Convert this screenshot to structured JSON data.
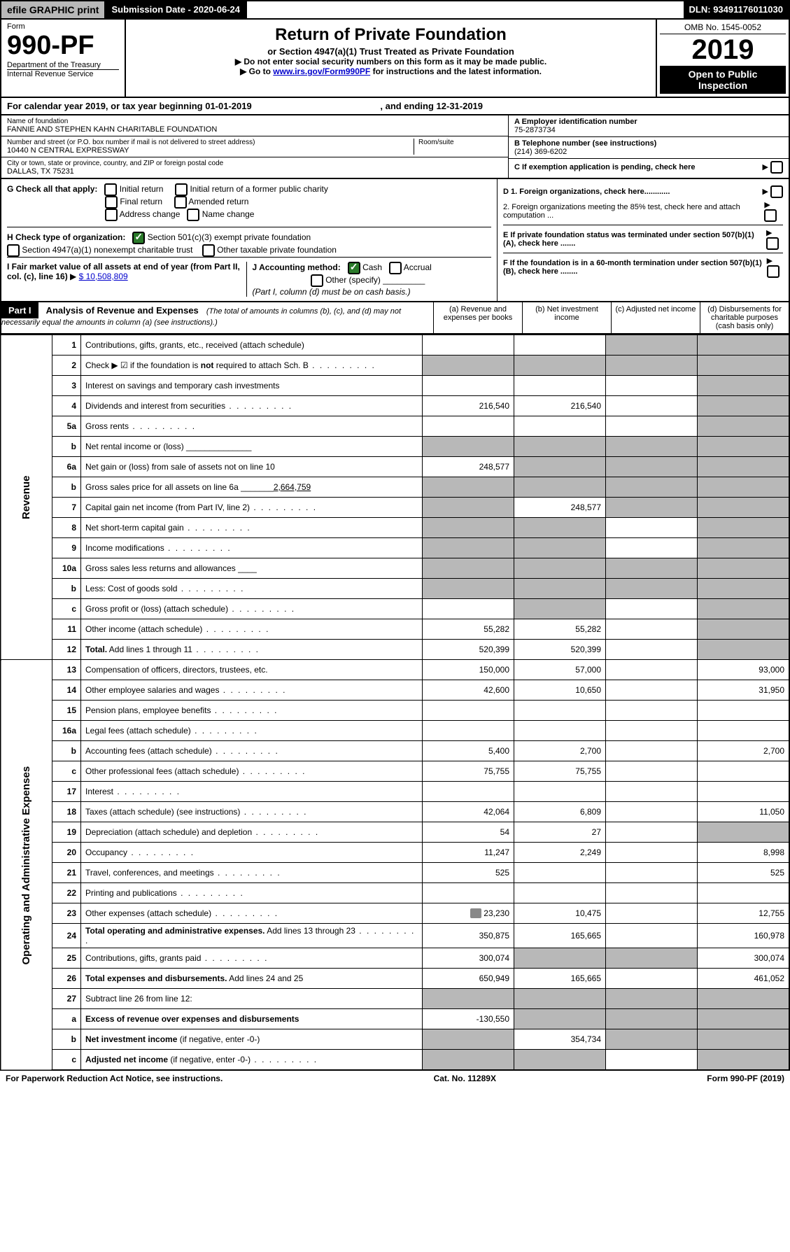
{
  "topbar": {
    "efile": "efile GRAPHIC print",
    "submission": "Submission Date - 2020-06-24",
    "dln": "DLN: 93491176011030"
  },
  "header": {
    "form_word": "Form",
    "form_no": "990-PF",
    "dept": "Department of the Treasury",
    "irs": "Internal Revenue Service",
    "title": "Return of Private Foundation",
    "subtitle": "or Section 4947(a)(1) Trust Treated as Private Foundation",
    "inst1": "Do not enter social security numbers on this form as it may be made public.",
    "inst2_pre": "Go to ",
    "inst2_link": "www.irs.gov/Form990PF",
    "inst2_post": " for instructions and the latest information.",
    "omb": "OMB No. 1545-0052",
    "year": "2019",
    "open": "Open to Public Inspection"
  },
  "calyear": {
    "text": "For calendar year 2019, or tax year beginning 01-01-2019",
    "end": ", and ending 12-31-2019"
  },
  "id": {
    "name_lbl": "Name of foundation",
    "name": "FANNIE AND STEPHEN KAHN CHARITABLE FOUNDATION",
    "addr_lbl": "Number and street (or P.O. box number if mail is not delivered to street address)",
    "addr": "10440 N CENTRAL EXPRESSWAY",
    "room_lbl": "Room/suite",
    "city_lbl": "City or town, state or province, country, and ZIP or foreign postal code",
    "city": "DALLAS, TX  75231",
    "a_lbl": "A Employer identification number",
    "a_val": "75-2873734",
    "b_lbl": "B Telephone number (see instructions)",
    "b_val": "(214) 369-6202",
    "c_lbl": "C If exemption application is pending, check here"
  },
  "g": {
    "lbl": "G Check all that apply:",
    "o1": "Initial return",
    "o2": "Initial return of a former public charity",
    "o3": "Final return",
    "o4": "Amended return",
    "o5": "Address change",
    "o6": "Name change"
  },
  "h": {
    "lbl": "H Check type of organization:",
    "o1": "Section 501(c)(3) exempt private foundation",
    "o2": "Section 4947(a)(1) nonexempt charitable trust",
    "o3": "Other taxable private foundation"
  },
  "i": {
    "lbl": "I Fair market value of all assets at end of year (from Part II, col. (c), line 16)",
    "val": "$  10,508,809"
  },
  "j": {
    "lbl": "J Accounting method:",
    "o1": "Cash",
    "o2": "Accrual",
    "o3": "Other (specify)",
    "note": "(Part I, column (d) must be on cash basis.)"
  },
  "d": {
    "d1": "D 1. Foreign organizations, check here............",
    "d2": "2. Foreign organizations meeting the 85% test, check here and attach computation ...",
    "e": "E  If private foundation status was terminated under section 507(b)(1)(A), check here .......",
    "f": "F  If the foundation is in a 60-month termination under section 507(b)(1)(B), check here ........"
  },
  "part1": {
    "lbl": "Part I",
    "title": "Analysis of Revenue and Expenses",
    "note": "(The total of amounts in columns (b), (c), and (d) may not necessarily equal the amounts in column (a) (see instructions).)",
    "ca": "(a)    Revenue and expenses per books",
    "cb": "(b)   Net investment income",
    "cc": "(c)   Adjusted net income",
    "cd": "(d)   Disbursements for charitable purposes (cash basis only)"
  },
  "sections": {
    "rev": "Revenue",
    "ope": "Operating and Administrative Expenses"
  },
  "rows": [
    {
      "n": "1",
      "d": "Contributions, gifts, grants, etc., received (attach schedule)",
      "a": "",
      "b": "",
      "c": "g",
      "dd": "g"
    },
    {
      "n": "2",
      "d": "Check ▶ ☑ if the foundation is <b>not</b> required to attach Sch. B",
      "cls": "dots",
      "a": "g",
      "b": "g",
      "c": "g",
      "dd": "g",
      "allgrey": true
    },
    {
      "n": "3",
      "d": "Interest on savings and temporary cash investments",
      "a": "",
      "b": "",
      "c": "",
      "dd": "g"
    },
    {
      "n": "4",
      "d": "Dividends and interest from securities",
      "cls": "dots",
      "a": "216,540",
      "b": "216,540",
      "c": "",
      "dd": "g"
    },
    {
      "n": "5a",
      "d": "Gross rents",
      "cls": "dots",
      "a": "",
      "b": "",
      "c": "",
      "dd": "g"
    },
    {
      "n": "b",
      "d": "Net rental income or (loss) ______________",
      "a": "g",
      "b": "g",
      "c": "g",
      "dd": "g",
      "allgrey": true
    },
    {
      "n": "6a",
      "d": "Net gain or (loss) from sale of assets not on line 10",
      "a": "248,577",
      "b": "g",
      "c": "g",
      "dd": "g"
    },
    {
      "n": "b",
      "d": "Gross sales price for all assets on line 6a _______<u>2,664,759</u>",
      "a": "g",
      "b": "g",
      "c": "g",
      "dd": "g",
      "allgrey": true
    },
    {
      "n": "7",
      "d": "Capital gain net income (from Part IV, line 2)",
      "cls": "dots",
      "a": "g",
      "b": "248,577",
      "c": "g",
      "dd": "g"
    },
    {
      "n": "8",
      "d": "Net short-term capital gain",
      "cls": "dots",
      "a": "g",
      "b": "g",
      "c": "",
      "dd": "g"
    },
    {
      "n": "9",
      "d": "Income modifications",
      "cls": "dots",
      "a": "g",
      "b": "g",
      "c": "",
      "dd": "g"
    },
    {
      "n": "10a",
      "d": "Gross sales less returns and allowances ____",
      "a": "g",
      "b": "g",
      "c": "g",
      "dd": "g",
      "allgrey": true
    },
    {
      "n": "b",
      "d": "Less: Cost of goods sold",
      "cls": "dots",
      "a": "g",
      "b": "g",
      "c": "g",
      "dd": "g",
      "allgrey": true
    },
    {
      "n": "c",
      "d": "Gross profit or (loss) (attach schedule)",
      "cls": "dots",
      "a": "",
      "b": "g",
      "c": "",
      "dd": "g"
    },
    {
      "n": "11",
      "d": "Other income (attach schedule)",
      "cls": "dots",
      "a": "55,282",
      "b": "55,282",
      "c": "",
      "dd": "g"
    },
    {
      "n": "12",
      "d": "<b>Total.</b> Add lines 1 through 11",
      "cls": "dots",
      "a": "520,399",
      "b": "520,399",
      "c": "",
      "dd": "g"
    },
    {
      "n": "13",
      "d": "Compensation of officers, directors, trustees, etc.",
      "a": "150,000",
      "b": "57,000",
      "c": "",
      "dd": "93,000"
    },
    {
      "n": "14",
      "d": "Other employee salaries and wages",
      "cls": "dots",
      "a": "42,600",
      "b": "10,650",
      "c": "",
      "dd": "31,950"
    },
    {
      "n": "15",
      "d": "Pension plans, employee benefits",
      "cls": "dots",
      "a": "",
      "b": "",
      "c": "",
      "dd": ""
    },
    {
      "n": "16a",
      "d": "Legal fees (attach schedule)",
      "cls": "dots",
      "a": "",
      "b": "",
      "c": "",
      "dd": ""
    },
    {
      "n": "b",
      "d": "Accounting fees (attach schedule)",
      "cls": "dots",
      "a": "5,400",
      "b": "2,700",
      "c": "",
      "dd": "2,700"
    },
    {
      "n": "c",
      "d": "Other professional fees (attach schedule)",
      "cls": "dots",
      "a": "75,755",
      "b": "75,755",
      "c": "",
      "dd": ""
    },
    {
      "n": "17",
      "d": "Interest",
      "cls": "dots",
      "a": "",
      "b": "",
      "c": "",
      "dd": ""
    },
    {
      "n": "18",
      "d": "Taxes (attach schedule) (see instructions)",
      "cls": "dots",
      "a": "42,064",
      "b": "6,809",
      "c": "",
      "dd": "11,050"
    },
    {
      "n": "19",
      "d": "Depreciation (attach schedule) and depletion",
      "cls": "dots",
      "a": "54",
      "b": "27",
      "c": "",
      "dd": "g"
    },
    {
      "n": "20",
      "d": "Occupancy",
      "cls": "dots",
      "a": "11,247",
      "b": "2,249",
      "c": "",
      "dd": "8,998"
    },
    {
      "n": "21",
      "d": "Travel, conferences, and meetings",
      "cls": "dots",
      "a": "525",
      "b": "",
      "c": "",
      "dd": "525"
    },
    {
      "n": "22",
      "d": "Printing and publications",
      "cls": "dots",
      "a": "",
      "b": "",
      "c": "",
      "dd": ""
    },
    {
      "n": "23",
      "d": "Other expenses (attach schedule)",
      "cls": "dots",
      "a": "23,230",
      "b": "10,475",
      "c": "",
      "dd": "12,755",
      "attach": true
    },
    {
      "n": "24",
      "d": "<b>Total operating and administrative expenses.</b> Add lines 13 through 23",
      "cls": "dots",
      "a": "350,875",
      "b": "165,665",
      "c": "",
      "dd": "160,978"
    },
    {
      "n": "25",
      "d": "Contributions, gifts, grants paid",
      "cls": "dots",
      "a": "300,074",
      "b": "g",
      "c": "g",
      "dd": "300,074"
    },
    {
      "n": "26",
      "d": "<b>Total expenses and disbursements.</b> Add lines 24 and 25",
      "a": "650,949",
      "b": "165,665",
      "c": "",
      "dd": "461,052"
    },
    {
      "n": "27",
      "d": "Subtract line 26 from line 12:",
      "a": "g",
      "b": "g",
      "c": "g",
      "dd": "g",
      "allgrey": true
    },
    {
      "n": "a",
      "d": "<b>Excess of revenue over expenses and disbursements</b>",
      "a": "-130,550",
      "b": "g",
      "c": "g",
      "dd": "g"
    },
    {
      "n": "b",
      "d": "<b>Net investment income</b> (if negative, enter -0-)",
      "a": "g",
      "b": "354,734",
      "c": "g",
      "dd": "g"
    },
    {
      "n": "c",
      "d": "<b>Adjusted net income</b> (if negative, enter -0-)",
      "cls": "dots",
      "a": "g",
      "b": "g",
      "c": "",
      "dd": "g"
    }
  ],
  "footer": {
    "left": "For Paperwork Reduction Act Notice, see instructions.",
    "mid": "Cat. No. 11289X",
    "right": "Form 990-PF (2019)"
  }
}
